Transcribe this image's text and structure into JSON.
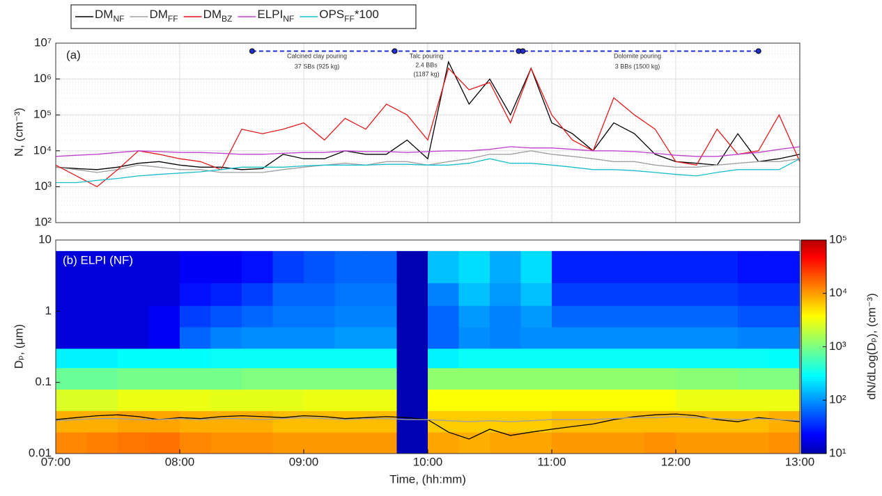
{
  "chart_data": [
    {
      "type": "line",
      "panel_label": "(a)",
      "ylabel": "N, (cm⁻³)",
      "log_y": true,
      "grid": true,
      "xlim": [
        "07:00",
        "13:00"
      ],
      "xticks": [
        "07:00",
        "08:00",
        "09:00",
        "10:00",
        "11:00",
        "12:00",
        "13:00"
      ],
      "ylim": [
        100,
        10000000
      ],
      "yticks": [
        {
          "value": 100,
          "label": "10²"
        },
        {
          "value": 1000,
          "label": "10³"
        },
        {
          "value": 10000,
          "label": "10⁴"
        },
        {
          "value": 100000,
          "label": "10⁵"
        },
        {
          "value": 1000000,
          "label": "10⁶"
        },
        {
          "value": 10000000,
          "label": "10⁷"
        }
      ],
      "x": [
        "07:00",
        "07:10",
        "07:20",
        "07:30",
        "07:40",
        "07:50",
        "08:00",
        "08:10",
        "08:20",
        "08:30",
        "08:40",
        "08:50",
        "09:00",
        "09:10",
        "09:20",
        "09:30",
        "09:40",
        "09:50",
        "10:00",
        "10:10",
        "10:20",
        "10:30",
        "10:40",
        "10:50",
        "11:00",
        "11:10",
        "11:20",
        "11:30",
        "11:40",
        "11:50",
        "12:00",
        "12:10",
        "12:20",
        "12:30",
        "12:40",
        "12:50",
        "13:00"
      ],
      "series": [
        {
          "name": "DM",
          "subscript": "NF",
          "color": "#000000",
          "values": [
            3500,
            3200,
            3000,
            3500,
            4500,
            5000,
            4000,
            3500,
            3500,
            3000,
            3200,
            8000,
            6000,
            6000,
            10000,
            8000,
            8000,
            20000,
            6000,
            3000000,
            200000,
            1000000,
            100000,
            2000000,
            60000,
            30000,
            10000,
            60000,
            30000,
            8000,
            5000,
            4500,
            4000,
            30000,
            5000,
            6000,
            8000
          ]
        },
        {
          "name": "DM",
          "subscript": "FF",
          "color": "#a0a0a0",
          "values": [
            3500,
            3000,
            2500,
            3000,
            4000,
            3500,
            3000,
            3000,
            2500,
            2500,
            2500,
            3000,
            3500,
            4000,
            4500,
            4000,
            5000,
            5000,
            4000,
            5000,
            6000,
            8000,
            8000,
            10000,
            8000,
            7000,
            6000,
            5000,
            5000,
            4000,
            3500,
            3500,
            4000,
            4500,
            5000,
            5000,
            6000
          ]
        },
        {
          "name": "DM",
          "subscript": "BZ",
          "color": "#e41a1c",
          "values": [
            4000,
            2000,
            1000,
            3000,
            10000,
            8000,
            6000,
            5000,
            3000,
            40000,
            30000,
            40000,
            60000,
            20000,
            80000,
            40000,
            200000,
            100000,
            20000,
            2000000,
            500000,
            800000,
            60000,
            2000000,
            100000,
            20000,
            10000,
            300000,
            100000,
            40000,
            5000,
            4000,
            40000,
            8000,
            10000,
            100000,
            5000
          ]
        },
        {
          "name": "ELPI",
          "subscript": "NF",
          "color": "#c040d0",
          "values": [
            7000,
            7500,
            8000,
            9000,
            10000,
            9500,
            9000,
            9000,
            8500,
            8000,
            8000,
            8500,
            9000,
            9000,
            10000,
            9500,
            9500,
            9000,
            9500,
            10000,
            10000,
            11000,
            13000,
            12000,
            12000,
            11000,
            10000,
            10000,
            9500,
            8500,
            7500,
            7000,
            7000,
            8000,
            9000,
            11000,
            13000
          ]
        },
        {
          "name": "OPS",
          "subscript": "FF",
          "suffix": "*100",
          "color": "#17becf",
          "values": [
            1300,
            1300,
            1500,
            1700,
            2000,
            2200,
            2400,
            2600,
            3000,
            3500,
            3500,
            3500,
            3800,
            4000,
            4000,
            4000,
            4200,
            4200,
            4000,
            4000,
            4500,
            6000,
            4500,
            4500,
            4000,
            3500,
            3000,
            3000,
            2800,
            2500,
            2200,
            2000,
            2500,
            3000,
            3000,
            3000,
            6000
          ]
        }
      ],
      "markers": {
        "color": "#1f2fd0",
        "x": [
          "08:35",
          "09:44",
          "10:44",
          "10:46",
          "12:40"
        ],
        "values": [
          6000000,
          6000000,
          6000000,
          6000000,
          6000000
        ]
      },
      "annotations": [
        [
          "Calcined clay pouring",
          "37 SBs (925 kg)"
        ],
        [
          "Talc pouring",
          "2.4 BBs",
          "(1187 kg)"
        ],
        [
          "Dolomite pouring",
          "3 BBs (1500 kg)"
        ]
      ]
    },
    {
      "type": "heatmap",
      "panel_label": "(b) ELPI (NF)",
      "xlabel": "Time, (hh:mm)",
      "ylabel": "Dₚ, (μm)",
      "log_y": true,
      "xlim": [
        "07:00",
        "13:00"
      ],
      "xticks": [
        "07:00",
        "08:00",
        "09:00",
        "10:00",
        "11:00",
        "12:00",
        "13:00"
      ],
      "ylim": [
        0.01,
        10
      ],
      "yticks": [
        0.01,
        0.1,
        1,
        10
      ],
      "colorbar_label": "dN/dLog(Dₚ), (cm⁻³)",
      "clim": [
        10,
        100000
      ],
      "cticks": [
        {
          "value": 10,
          "label": "10¹"
        },
        {
          "value": 100,
          "label": "10²"
        },
        {
          "value": 1000,
          "label": "10³"
        },
        {
          "value": 10000,
          "label": "10⁴"
        },
        {
          "value": 100000,
          "label": "10⁵"
        }
      ],
      "x_bins": [
        "07:00",
        "07:15",
        "07:30",
        "07:45",
        "08:00",
        "08:15",
        "08:30",
        "08:45",
        "09:00",
        "09:15",
        "09:30",
        "09:45",
        "10:00",
        "10:15",
        "10:30",
        "10:45",
        "11:00",
        "11:15",
        "11:30",
        "11:45",
        "12:00",
        "12:15",
        "12:30",
        "12:45",
        "13:00"
      ],
      "y_bins": [
        0.01,
        0.02,
        0.04,
        0.08,
        0.16,
        0.3,
        0.6,
        1.2,
        2.5,
        7
      ],
      "z": [
        [
          12000,
          8000,
          2500,
          800,
          250,
          15,
          15,
          15,
          15
        ],
        [
          13000,
          8000,
          2500,
          800,
          250,
          15,
          15,
          15,
          15
        ],
        [
          14000,
          9000,
          3000,
          900,
          280,
          15,
          15,
          15,
          15
        ],
        [
          15000,
          9000,
          3000,
          900,
          280,
          20,
          20,
          15,
          15
        ],
        [
          12000,
          8000,
          3000,
          900,
          280,
          60,
          40,
          25,
          20
        ],
        [
          11000,
          8000,
          2800,
          900,
          300,
          80,
          50,
          30,
          20
        ],
        [
          11000,
          8000,
          2800,
          1000,
          300,
          90,
          60,
          40,
          25
        ],
        [
          10000,
          7000,
          2800,
          1000,
          300,
          90,
          70,
          60,
          40
        ],
        [
          10000,
          7000,
          3000,
          1000,
          300,
          90,
          70,
          60,
          50
        ],
        [
          10000,
          7000,
          3000,
          1000,
          300,
          100,
          80,
          70,
          60
        ],
        [
          10000,
          7000,
          3000,
          1000,
          300,
          100,
          80,
          70,
          60
        ],
        [
          10,
          10,
          10,
          10,
          10,
          10,
          10,
          10,
          10
        ],
        [
          9000,
          6000,
          3500,
          1200,
          250,
          60,
          60,
          80,
          150
        ],
        [
          8000,
          6000,
          3500,
          1200,
          300,
          90,
          100,
          150,
          200
        ],
        [
          9000,
          6000,
          3500,
          1200,
          300,
          80,
          80,
          100,
          120
        ],
        [
          9000,
          6000,
          3500,
          1200,
          300,
          90,
          100,
          150,
          200
        ],
        [
          10000,
          7000,
          3500,
          1200,
          300,
          90,
          60,
          40,
          30
        ],
        [
          10000,
          7000,
          3500,
          1200,
          300,
          90,
          60,
          40,
          30
        ],
        [
          10000,
          7000,
          3500,
          1200,
          300,
          90,
          60,
          40,
          30
        ],
        [
          11000,
          7000,
          3500,
          1200,
          300,
          90,
          60,
          40,
          30
        ],
        [
          10000,
          7000,
          3000,
          1100,
          300,
          90,
          60,
          40,
          30
        ],
        [
          10000,
          7000,
          3000,
          1100,
          300,
          90,
          60,
          40,
          30
        ],
        [
          10000,
          7000,
          3000,
          1000,
          300,
          80,
          50,
          35,
          25
        ],
        [
          11000,
          8000,
          3000,
          1000,
          280,
          80,
          50,
          35,
          25
        ]
      ],
      "x": [
        "07:00",
        "07:10",
        "07:20",
        "07:30",
        "07:40",
        "07:50",
        "08:00",
        "08:10",
        "08:20",
        "08:30",
        "08:40",
        "08:50",
        "09:00",
        "09:10",
        "09:20",
        "09:30",
        "09:40",
        "09:50",
        "10:00",
        "10:10",
        "10:20",
        "10:30",
        "10:40",
        "10:50",
        "11:00",
        "11:10",
        "11:20",
        "11:30",
        "11:40",
        "11:50",
        "12:00",
        "12:10",
        "12:20",
        "12:30",
        "12:40",
        "12:50",
        "13:00"
      ],
      "series": [
        {
          "color": "#000000",
          "values": [
            0.03,
            0.032,
            0.034,
            0.035,
            0.033,
            0.03,
            0.032,
            0.031,
            0.033,
            0.034,
            0.033,
            0.032,
            0.034,
            0.033,
            0.031,
            0.032,
            0.033,
            0.032,
            0.03,
            0.02,
            0.016,
            0.022,
            0.018,
            0.02,
            0.022,
            0.024,
            0.026,
            0.03,
            0.033,
            0.035,
            0.036,
            0.034,
            0.03,
            0.028,
            0.032,
            0.03,
            0.028
          ]
        },
        {
          "color": "#a0a0a0",
          "values": [
            0.029,
            0.03,
            0.031,
            0.031,
            0.03,
            0.03,
            0.031,
            0.03,
            0.031,
            0.031,
            0.03,
            0.031,
            0.032,
            0.031,
            0.03,
            0.031,
            0.031,
            0.03,
            0.03,
            0.029,
            0.028,
            0.029,
            0.028,
            0.029,
            0.03,
            0.03,
            0.03,
            0.031,
            0.032,
            0.032,
            0.033,
            0.032,
            0.031,
            0.03,
            0.031,
            0.03,
            0.029
          ]
        }
      ]
    }
  ]
}
